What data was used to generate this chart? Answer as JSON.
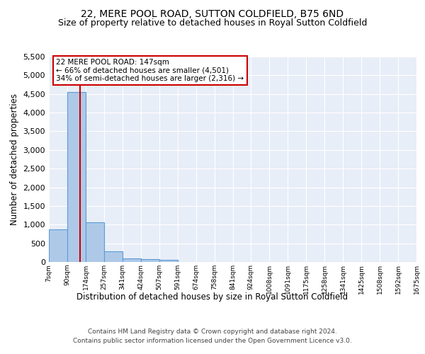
{
  "title": "22, MERE POOL ROAD, SUTTON COLDFIELD, B75 6ND",
  "subtitle": "Size of property relative to detached houses in Royal Sutton Coldfield",
  "xlabel": "Distribution of detached houses by size in Royal Sutton Coldfield",
  "ylabel": "Number of detached properties",
  "bin_labels": [
    "7sqm",
    "90sqm",
    "174sqm",
    "257sqm",
    "341sqm",
    "424sqm",
    "507sqm",
    "591sqm",
    "674sqm",
    "758sqm",
    "841sqm",
    "924sqm",
    "1008sqm",
    "1091sqm",
    "1175sqm",
    "1258sqm",
    "1341sqm",
    "1425sqm",
    "1508sqm",
    "1592sqm",
    "1675sqm"
  ],
  "bar_values": [
    880,
    4560,
    1060,
    290,
    90,
    80,
    60,
    0,
    0,
    0,
    0,
    0,
    0,
    0,
    0,
    0,
    0,
    0,
    0,
    0
  ],
  "bin_edges": [
    7,
    90,
    174,
    257,
    341,
    424,
    507,
    591,
    674,
    758,
    841,
    924,
    1008,
    1091,
    1175,
    1258,
    1341,
    1425,
    1508,
    1592,
    1675
  ],
  "property_size": 147,
  "property_label": "22 MERE POOL ROAD: 147sqm",
  "annotation_line1": "← 66% of detached houses are smaller (4,501)",
  "annotation_line2": "34% of semi-detached houses are larger (2,316) →",
  "bar_color": "#aec9e8",
  "bar_edge_color": "#5b9bd5",
  "vline_color": "#cc0000",
  "annotation_box_color": "#cc0000",
  "ylim": [
    0,
    5500
  ],
  "yticks": [
    0,
    500,
    1000,
    1500,
    2000,
    2500,
    3000,
    3500,
    4000,
    4500,
    5000,
    5500
  ],
  "bg_color": "#e8eef7",
  "title_fontsize": 10,
  "subtitle_fontsize": 9,
  "footer_line1": "Contains HM Land Registry data © Crown copyright and database right 2024.",
  "footer_line2": "Contains public sector information licensed under the Open Government Licence v3.0."
}
